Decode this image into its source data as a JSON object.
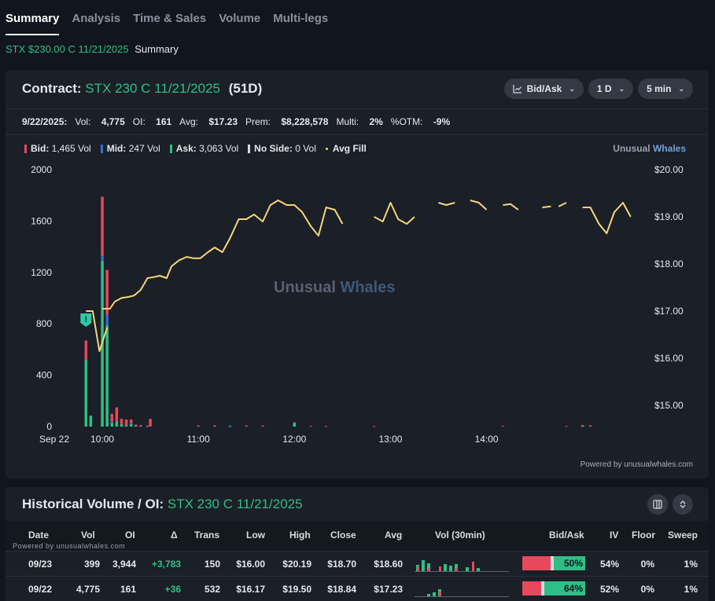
{
  "tabs": [
    {
      "label": "Summary",
      "active": true
    },
    {
      "label": "Analysis"
    },
    {
      "label": "Time & Sales"
    },
    {
      "label": "Volume"
    },
    {
      "label": "Multi-legs"
    }
  ],
  "subheader": {
    "contract": "STX $230.00 C 11/21/2025",
    "page": "Summary"
  },
  "contract_card": {
    "label": "Contract:",
    "contract": "STX 230 C 11/21/2025",
    "days": "(51D)",
    "controls": {
      "chart_mode": "Bid/Ask",
      "range": "1 D",
      "interval": "5 min"
    },
    "stats": {
      "date": "9/22/2025:",
      "vol_label": "Vol:",
      "vol": "4,775",
      "oi_label": "OI:",
      "oi": "161",
      "avg_label": "Avg:",
      "avg": "$17.23",
      "prem_label": "Prem:",
      "prem": "$8,228,578",
      "multi_label": "Multi:",
      "multi": "2%",
      "otm_label": "%OTM:",
      "otm": "-9%"
    },
    "legend": {
      "bid": "Bid:",
      "bid_val": "1,465 Vol",
      "mid": "Mid:",
      "mid_val": "247 Vol",
      "ask": "Ask:",
      "ask_val": "3,063 Vol",
      "noside": "No Side:",
      "noside_val": "0 Vol",
      "avgfill": "Avg Fill"
    },
    "brand": {
      "a": "Unusual",
      "b": "Whales"
    },
    "watermark": {
      "a": "Unusual",
      "b": "Whales"
    },
    "powered": "Powered by unusualwhales.com",
    "colors": {
      "bid": "#e8485b",
      "mid": "#2f6fd6",
      "ask": "#2fbf86",
      "noside": "#d8dbe0",
      "avgfill": "#f5d67a"
    }
  },
  "chart_data": {
    "type": "bar+line",
    "left_axis_ticks": [
      "2000",
      "1600",
      "1200",
      "800",
      "400",
      "0"
    ],
    "right_axis_ticks": [
      "$20.00",
      "$19.00",
      "$18.00",
      "$17.00",
      "$16.00",
      "$15.00"
    ],
    "x_ticks": [
      "Sep 22",
      "10:00",
      "11:00",
      "12:00",
      "13:00",
      "14:00"
    ],
    "ylim_volume": [
      0,
      2000
    ],
    "ylim_price": [
      14.55,
      20.0
    ],
    "bars": [
      {
        "t": 9.83,
        "bid": 150,
        "mid": 0,
        "ask": 520
      },
      {
        "t": 9.88,
        "bid": 0,
        "mid": 0,
        "ask": 85
      },
      {
        "t": 10.0,
        "bid": 460,
        "mid": 40,
        "ask": 1290
      },
      {
        "t": 10.05,
        "bid": 350,
        "mid": 80,
        "ask": 790
      },
      {
        "t": 10.1,
        "bid": 60,
        "mid": 10,
        "ask": 30
      },
      {
        "t": 10.15,
        "bid": 110,
        "mid": 0,
        "ask": 40
      },
      {
        "t": 10.2,
        "bid": 40,
        "mid": 0,
        "ask": 20
      },
      {
        "t": 10.25,
        "bid": 45,
        "mid": 0,
        "ask": 10
      },
      {
        "t": 10.3,
        "bid": 25,
        "mid": 10,
        "ask": 20
      },
      {
        "t": 10.35,
        "bid": 10,
        "mid": 0,
        "ask": 5
      },
      {
        "t": 10.4,
        "bid": 8,
        "mid": 4,
        "ask": 0
      },
      {
        "t": 10.47,
        "bid": 5,
        "mid": 3,
        "ask": 0
      },
      {
        "t": 10.5,
        "bid": 60,
        "mid": 0,
        "ask": 0
      },
      {
        "t": 11.0,
        "bid": 8,
        "mid": 0,
        "ask": 0
      },
      {
        "t": 11.17,
        "bid": 10,
        "mid": 0,
        "ask": 0
      },
      {
        "t": 11.33,
        "bid": 0,
        "mid": 4,
        "ask": 4
      },
      {
        "t": 11.5,
        "bid": 8,
        "mid": 0,
        "ask": 0
      },
      {
        "t": 11.67,
        "bid": 8,
        "mid": 0,
        "ask": 0
      },
      {
        "t": 12.0,
        "bid": 5,
        "mid": 0,
        "ask": 28
      },
      {
        "t": 12.17,
        "bid": 6,
        "mid": 0,
        "ask": 0
      },
      {
        "t": 12.33,
        "bid": 5,
        "mid": 0,
        "ask": 0
      },
      {
        "t": 12.83,
        "bid": 4,
        "mid": 0,
        "ask": 0
      },
      {
        "t": 14.17,
        "bid": 6,
        "mid": 0,
        "ask": 0
      },
      {
        "t": 14.83,
        "bid": 5,
        "mid": 0,
        "ask": 0
      },
      {
        "t": 15.0,
        "bid": 8,
        "mid": 0,
        "ask": 4
      },
      {
        "t": 15.08,
        "bid": 10,
        "mid": 0,
        "ask": 0
      }
    ],
    "avg_fill_segments": [
      [
        [
          9.83,
          17.0
        ],
        [
          9.9,
          17.0
        ],
        [
          9.97,
          16.15
        ],
        [
          10.05,
          16.65
        ]
      ],
      [
        [
          10.0,
          17.05
        ],
        [
          10.08,
          17.05
        ],
        [
          10.13,
          17.2
        ],
        [
          10.2,
          17.28
        ],
        [
          10.27,
          17.3
        ],
        [
          10.33,
          17.33
        ],
        [
          10.4,
          17.45
        ],
        [
          10.47,
          17.7
        ],
        [
          10.53,
          17.72
        ],
        [
          10.6,
          17.75
        ],
        [
          10.67,
          17.7
        ],
        [
          10.72,
          17.95
        ],
        [
          10.8,
          18.08
        ],
        [
          10.88,
          18.15
        ],
        [
          10.95,
          18.12
        ],
        [
          11.02,
          18.12
        ],
        [
          11.1,
          18.25
        ],
        [
          11.17,
          18.35
        ],
        [
          11.25,
          18.25
        ],
        [
          11.33,
          18.55
        ],
        [
          11.42,
          18.95
        ],
        [
          11.5,
          18.95
        ],
        [
          11.58,
          19.05
        ],
        [
          11.67,
          18.9
        ],
        [
          11.75,
          19.25
        ],
        [
          11.83,
          19.35
        ],
        [
          11.92,
          19.25
        ],
        [
          12.0,
          19.25
        ],
        [
          12.08,
          19.1
        ],
        [
          12.17,
          18.8
        ],
        [
          12.25,
          18.6
        ],
        [
          12.33,
          19.2
        ],
        [
          12.42,
          19.15
        ],
        [
          12.5,
          18.85
        ]
      ],
      [
        [
          12.83,
          19.0
        ],
        [
          12.92,
          18.9
        ],
        [
          13.0,
          19.3
        ],
        [
          13.08,
          18.95
        ],
        [
          13.17,
          18.85
        ],
        [
          13.25,
          19.0
        ]
      ],
      [
        [
          13.5,
          19.3
        ],
        [
          13.58,
          19.25
        ],
        [
          13.67,
          19.3
        ]
      ],
      [
        [
          13.83,
          19.35
        ],
        [
          13.92,
          19.3
        ],
        [
          14.0,
          19.15
        ]
      ],
      [
        [
          14.17,
          19.25
        ],
        [
          14.25,
          19.27
        ],
        [
          14.33,
          19.15
        ]
      ],
      [
        [
          14.58,
          19.2
        ],
        [
          14.67,
          19.22
        ]
      ],
      [
        [
          14.75,
          19.22
        ],
        [
          14.83,
          19.3
        ]
      ],
      [
        [
          15.0,
          19.2
        ],
        [
          15.08,
          19.2
        ],
        [
          15.17,
          18.85
        ],
        [
          15.25,
          18.65
        ],
        [
          15.33,
          19.1
        ],
        [
          15.42,
          19.3
        ],
        [
          15.5,
          19.0
        ]
      ]
    ],
    "alert_marker": {
      "t": 9.83,
      "label": "!"
    }
  },
  "history_card": {
    "title": "Historical Volume / OI:",
    "contract": "STX 230 C 11/21/2025",
    "powered": "Powered by unusualwhales.com",
    "columns": [
      "Date",
      "Vol",
      "OI",
      "Δ",
      "Trans",
      "Low",
      "High",
      "Close",
      "Avg",
      "Vol (30min)",
      "Bid/Ask",
      "IV",
      "Floor",
      "Sweep"
    ],
    "rows": [
      {
        "date": "09/23",
        "vol": "399",
        "oi": "3,944",
        "delta": "+3,783",
        "trans": "150",
        "low": "$16.00",
        "high": "$20.19",
        "close": "$18.70",
        "avg": "$18.60",
        "bidask_pct": "50%",
        "bid_fraction": 0.45,
        "iv": "54%",
        "floor": "0%",
        "sweep": "1%",
        "spark": [
          {
            "r": 6,
            "g": 8
          },
          {
            "r": 0,
            "g": 14
          },
          {
            "r": 3,
            "g": 10
          },
          {
            "r": 0,
            "g": 0
          },
          {
            "r": 6,
            "g": 0
          },
          {
            "r": 0,
            "g": 9
          },
          {
            "r": 0,
            "g": 7
          },
          {
            "r": 4,
            "g": 9
          },
          {
            "r": 0,
            "g": 0
          },
          {
            "r": 0,
            "g": 5
          },
          {
            "r": 12,
            "g": 0
          },
          {
            "r": 0,
            "g": 4
          }
        ]
      },
      {
        "date": "09/22",
        "vol": "4,775",
        "oi": "161",
        "delta": "+36",
        "trans": "532",
        "low": "$16.17",
        "high": "$19.50",
        "close": "$18.84",
        "avg": "$17.23",
        "bidask_pct": "64%",
        "bid_fraction": 0.3,
        "iv": "52%",
        "floor": "0%",
        "sweep": "1%",
        "spark": [
          {
            "r": 0,
            "g": 0
          },
          {
            "r": 0,
            "g": 0
          },
          {
            "r": 0,
            "g": 3
          },
          {
            "r": 0,
            "g": 5
          },
          {
            "r": 6,
            "g": 9
          }
        ]
      }
    ]
  }
}
